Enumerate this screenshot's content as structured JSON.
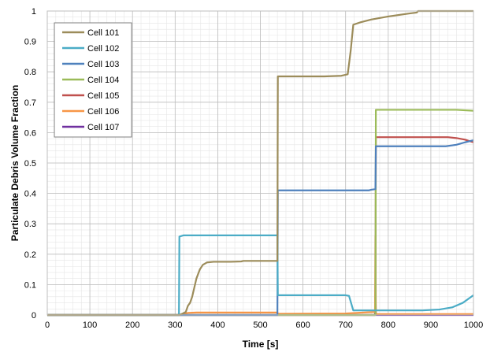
{
  "chart_data": {
    "type": "line",
    "title": "",
    "xlabel": "Time [s]",
    "ylabel": "Particulate Debris Volume Fraction",
    "xlim": [
      0,
      1000
    ],
    "ylim": [
      0,
      1
    ],
    "x_ticks": [
      "0",
      "100",
      "200",
      "300",
      "400",
      "500",
      "600",
      "700",
      "800",
      "900",
      "1000"
    ],
    "y_ticks": [
      "0",
      "0.1",
      "0.2",
      "0.3",
      "0.4",
      "0.5",
      "0.6",
      "0.7",
      "0.8",
      "0.9",
      "1"
    ],
    "grid": true,
    "legend_position": "top-left",
    "series": [
      {
        "name": "Cell 101",
        "color": "#9C8C5A",
        "points": [
          [
            0,
            0
          ],
          [
            310,
            0
          ],
          [
            318,
            0.005
          ],
          [
            325,
            0.01
          ],
          [
            330,
            0.03
          ],
          [
            335,
            0.04
          ],
          [
            340,
            0.06
          ],
          [
            345,
            0.09
          ],
          [
            350,
            0.12
          ],
          [
            358,
            0.15
          ],
          [
            365,
            0.165
          ],
          [
            375,
            0.173
          ],
          [
            390,
            0.175
          ],
          [
            430,
            0.175
          ],
          [
            455,
            0.176
          ],
          [
            460,
            0.178
          ],
          [
            500,
            0.178
          ],
          [
            540,
            0.178
          ],
          [
            541,
            0.785
          ],
          [
            600,
            0.785
          ],
          [
            650,
            0.785
          ],
          [
            690,
            0.787
          ],
          [
            705,
            0.792
          ],
          [
            712,
            0.87
          ],
          [
            718,
            0.955
          ],
          [
            735,
            0.963
          ],
          [
            760,
            0.972
          ],
          [
            800,
            0.982
          ],
          [
            850,
            0.992
          ],
          [
            867,
            0.995
          ],
          [
            870,
            1.0
          ],
          [
            1000,
            1.0
          ]
        ]
      },
      {
        "name": "Cell 102",
        "color": "#4BACC6",
        "points": [
          [
            0,
            0
          ],
          [
            309,
            0
          ],
          [
            310,
            0.258
          ],
          [
            320,
            0.262
          ],
          [
            460,
            0.262
          ],
          [
            540,
            0.262
          ],
          [
            541,
            0.065
          ],
          [
            700,
            0.065
          ],
          [
            708,
            0.063
          ],
          [
            718,
            0.015
          ],
          [
            740,
            0.015
          ],
          [
            800,
            0.015
          ],
          [
            880,
            0.015
          ],
          [
            920,
            0.018
          ],
          [
            950,
            0.025
          ],
          [
            975,
            0.04
          ],
          [
            1000,
            0.065
          ]
        ]
      },
      {
        "name": "Cell 103",
        "color": "#4F81BD",
        "points": [
          [
            0,
            0
          ],
          [
            540,
            0
          ],
          [
            541,
            0.41
          ],
          [
            700,
            0.41
          ],
          [
            755,
            0.41
          ],
          [
            760,
            0.412
          ],
          [
            770,
            0.414
          ],
          [
            771,
            0.555
          ],
          [
            800,
            0.555
          ],
          [
            935,
            0.555
          ],
          [
            960,
            0.56
          ],
          [
            980,
            0.568
          ],
          [
            1000,
            0.575
          ]
        ]
      },
      {
        "name": "Cell 104",
        "color": "#9BBB59",
        "points": [
          [
            0,
            0
          ],
          [
            770,
            0
          ],
          [
            771,
            0.675
          ],
          [
            800,
            0.675
          ],
          [
            960,
            0.675
          ],
          [
            1000,
            0.672
          ]
        ]
      },
      {
        "name": "Cell 105",
        "color": "#C0504D",
        "points": [
          [
            0,
            0
          ],
          [
            770,
            0
          ],
          [
            771,
            0.585
          ],
          [
            900,
            0.585
          ],
          [
            940,
            0.585
          ],
          [
            960,
            0.582
          ],
          [
            980,
            0.577
          ],
          [
            1000,
            0.568
          ]
        ]
      },
      {
        "name": "Cell 106",
        "color": "#F79646",
        "points": [
          [
            0,
            0
          ],
          [
            310,
            0
          ],
          [
            320,
            0.003
          ],
          [
            330,
            0.007
          ],
          [
            350,
            0.008
          ],
          [
            540,
            0.008
          ],
          [
            541,
            0.004
          ],
          [
            700,
            0.005
          ],
          [
            769,
            0.01
          ],
          [
            770,
            0.26
          ],
          [
            771,
            0.003
          ],
          [
            1000,
            0.003
          ]
        ]
      },
      {
        "name": "Cell 107",
        "color": "#7030A0",
        "points": [
          [
            0,
            0
          ],
          [
            769,
            0
          ],
          [
            770,
            0.1
          ],
          [
            771,
            0
          ],
          [
            1000,
            0
          ]
        ]
      }
    ]
  }
}
